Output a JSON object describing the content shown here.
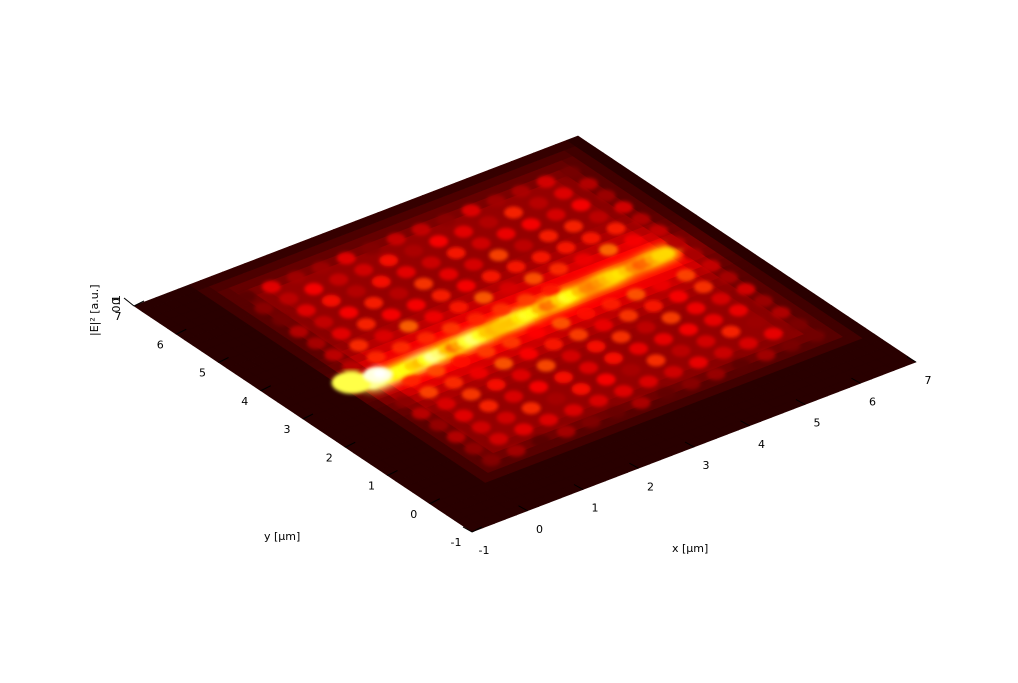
{
  "chart_data": {
    "type": "heatmap",
    "subtype": "3d-surface",
    "colormap": "hot",
    "xlabel": "x [µm]",
    "ylabel": "y [µm]",
    "zlabel": "|E|² [a.u.]",
    "xlim": [
      -1,
      7
    ],
    "ylim": [
      -1,
      7
    ],
    "zlim": [
      0,
      0.1
    ],
    "xticks": [
      "-1",
      "0",
      "1",
      "2",
      "3",
      "4",
      "5",
      "6",
      "7"
    ],
    "yticks": [
      "-1",
      "0",
      "1",
      "2",
      "3",
      "4",
      "5",
      "6",
      "7"
    ],
    "zticks": [
      "0",
      "0.1"
    ],
    "grid": false,
    "features": {
      "waveguide": {
        "from": [
          0.4,
          3.2
        ],
        "to": [
          6.0,
          3.6
        ],
        "peak_intensity": 0.1,
        "description_visible": false
      },
      "lattice_pitch_um": 0.45,
      "lattice_region": {
        "x": [
          0.3,
          6.5
        ],
        "y": [
          0.3,
          6.6
        ]
      },
      "hotspot_xy": [
        0.5,
        3.3
      ]
    }
  }
}
